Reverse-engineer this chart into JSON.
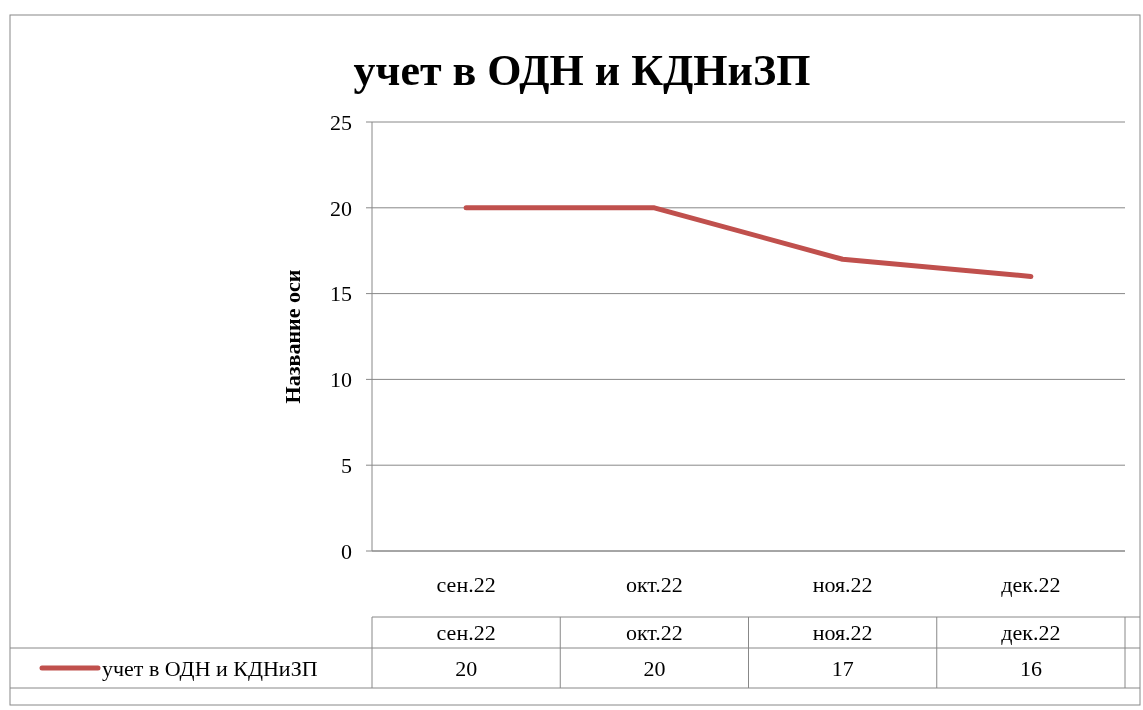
{
  "chart_data": {
    "type": "line",
    "title": "учет в ОДН и КДНиЗП",
    "ylabel": "Название оси",
    "categories": [
      "сен.22",
      "окт.22",
      "ноя.22",
      "дек.22"
    ],
    "series": [
      {
        "name": "учет в ОДН и КДНиЗП",
        "color": "#c0504d",
        "values": [
          20,
          20,
          17,
          16
        ]
      }
    ],
    "ylim": [
      0,
      25
    ],
    "yticks": [
      0,
      5,
      10,
      15,
      20,
      25
    ],
    "grid": "y",
    "legend": "bottom",
    "data_labels": true,
    "line_style": "solid"
  }
}
